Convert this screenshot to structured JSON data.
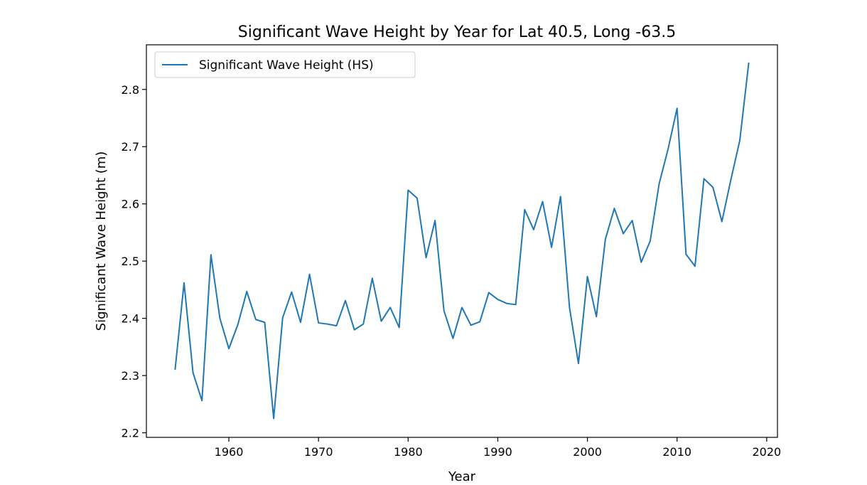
{
  "chart_data": {
    "type": "line",
    "title": "Significant Wave Height by Year for Lat 40.5, Long -63.5",
    "xlabel": "Year",
    "ylabel": "Significant Wave Height (m)",
    "xlim": [
      1950.8,
      2021.2
    ],
    "ylim": [
      2.192,
      2.878
    ],
    "xticks": [
      1960,
      1970,
      1980,
      1990,
      2000,
      2010,
      2020
    ],
    "yticks": [
      2.2,
      2.3,
      2.4,
      2.5,
      2.6,
      2.7,
      2.8
    ],
    "legend": {
      "position": "top-left",
      "entries": [
        "Significant Wave Height (HS)"
      ]
    },
    "grid": false,
    "series": [
      {
        "name": "Significant Wave Height (HS)",
        "color": "#1f77b4",
        "x": [
          1954,
          1955,
          1956,
          1957,
          1958,
          1959,
          1960,
          1961,
          1962,
          1963,
          1964,
          1965,
          1966,
          1967,
          1968,
          1969,
          1970,
          1971,
          1972,
          1973,
          1974,
          1975,
          1976,
          1977,
          1978,
          1979,
          1980,
          1981,
          1982,
          1983,
          1984,
          1985,
          1986,
          1987,
          1988,
          1989,
          1990,
          1991,
          1992,
          1993,
          1994,
          1995,
          1996,
          1997,
          1998,
          1999,
          2000,
          2001,
          2002,
          2003,
          2004,
          2005,
          2006,
          2007,
          2008,
          2009,
          2010,
          2011,
          2012,
          2013,
          2014,
          2015,
          2016,
          2017,
          2018
        ],
        "values": [
          2.31,
          2.462,
          2.305,
          2.256,
          2.511,
          2.4,
          2.347,
          2.389,
          2.447,
          2.398,
          2.393,
          2.225,
          2.401,
          2.446,
          2.393,
          2.477,
          2.392,
          2.39,
          2.387,
          2.431,
          2.38,
          2.39,
          2.47,
          2.395,
          2.419,
          2.384,
          2.624,
          2.61,
          2.506,
          2.571,
          2.413,
          2.365,
          2.419,
          2.388,
          2.394,
          2.445,
          2.433,
          2.426,
          2.424,
          2.59,
          2.555,
          2.604,
          2.524,
          2.613,
          2.419,
          2.321,
          2.473,
          2.403,
          2.538,
          2.592,
          2.548,
          2.571,
          2.498,
          2.535,
          2.635,
          2.696,
          2.767,
          2.512,
          2.491,
          2.644,
          2.629,
          2.569,
          2.642,
          2.711,
          2.847
        ]
      }
    ]
  }
}
